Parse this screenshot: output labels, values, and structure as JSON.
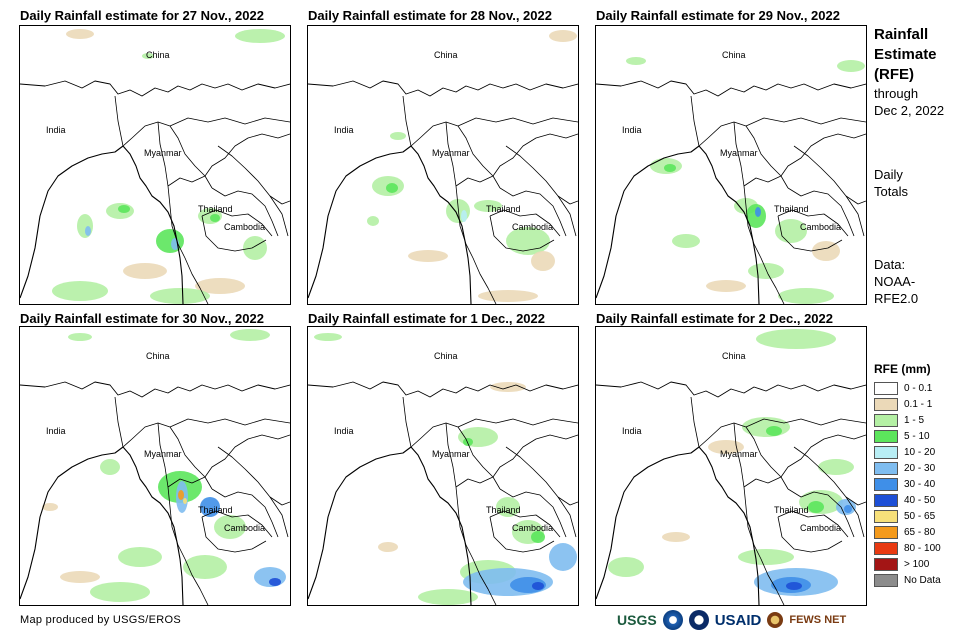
{
  "panels": [
    {
      "title": "Daily Rainfall estimate for 27 Nov., 2022",
      "labels": {
        "china": "China",
        "india": "India",
        "myanmar": "Myanmar",
        "thailand": "Thailand",
        "cambodia": "Cambodia"
      }
    },
    {
      "title": "Daily Rainfall estimate for 28 Nov., 2022",
      "labels": {
        "china": "China",
        "india": "India",
        "myanmar": "Myanmar",
        "thailand": "Thailand",
        "cambodia": "Cambodia"
      }
    },
    {
      "title": "Daily Rainfall estimate for 29 Nov., 2022",
      "labels": {
        "china": "China",
        "india": "India",
        "myanmar": "Myanmar",
        "thailand": "Thailand",
        "cambodia": "Cambodia"
      }
    },
    {
      "title": "Daily Rainfall estimate for 30 Nov., 2022",
      "labels": {
        "china": "China",
        "india": "India",
        "myanmar": "Myanmar",
        "thailand": "Thailand",
        "cambodia": "Cambodia"
      }
    },
    {
      "title": "Daily Rainfall estimate for 1 Dec., 2022",
      "labels": {
        "china": "China",
        "india": "India",
        "myanmar": "Myanmar",
        "thailand": "Thailand",
        "cambodia": "Cambodia"
      }
    },
    {
      "title": "Daily Rainfall estimate for 2 Dec., 2022",
      "labels": {
        "china": "China",
        "india": "India",
        "myanmar": "Myanmar",
        "thailand": "Thailand",
        "cambodia": "Cambodia"
      }
    }
  ],
  "sidebar": {
    "title_lines": [
      "Rainfall",
      "Estimate",
      "(RFE)"
    ],
    "through": "through",
    "date": "Dec 2, 2022",
    "daily": "Daily",
    "totals": "Totals",
    "data_label": "Data:",
    "data_source_1": "NOAA-",
    "data_source_2": "RFE2.0"
  },
  "legend": {
    "title": "RFE (mm)",
    "items": [
      {
        "label": "0 - 0.1",
        "color": "#ffffff"
      },
      {
        "label": "0.1 - 1",
        "color": "#ebd9b8"
      },
      {
        "label": "1 - 5",
        "color": "#b4f0a4"
      },
      {
        "label": "5 - 10",
        "color": "#5ce55c"
      },
      {
        "label": "10 - 20",
        "color": "#b8eef5"
      },
      {
        "label": "20 - 30",
        "color": "#7fbdf0"
      },
      {
        "label": "30 - 40",
        "color": "#3f8fe8"
      },
      {
        "label": "40 - 50",
        "color": "#1d4fd6"
      },
      {
        "label": "50 - 65",
        "color": "#f7e07a"
      },
      {
        "label": "65 - 80",
        "color": "#f49a1c"
      },
      {
        "label": "80 - 100",
        "color": "#e83a12"
      },
      {
        "label": "> 100",
        "color": "#a31515"
      },
      {
        "label": "No Data",
        "color": "#8c8c8c"
      }
    ]
  },
  "footer": {
    "credit": "Map produced by USGS/EROS",
    "logos": {
      "usgs": "USGS",
      "usaid": "USAID",
      "fews": "FEWS NET"
    }
  }
}
